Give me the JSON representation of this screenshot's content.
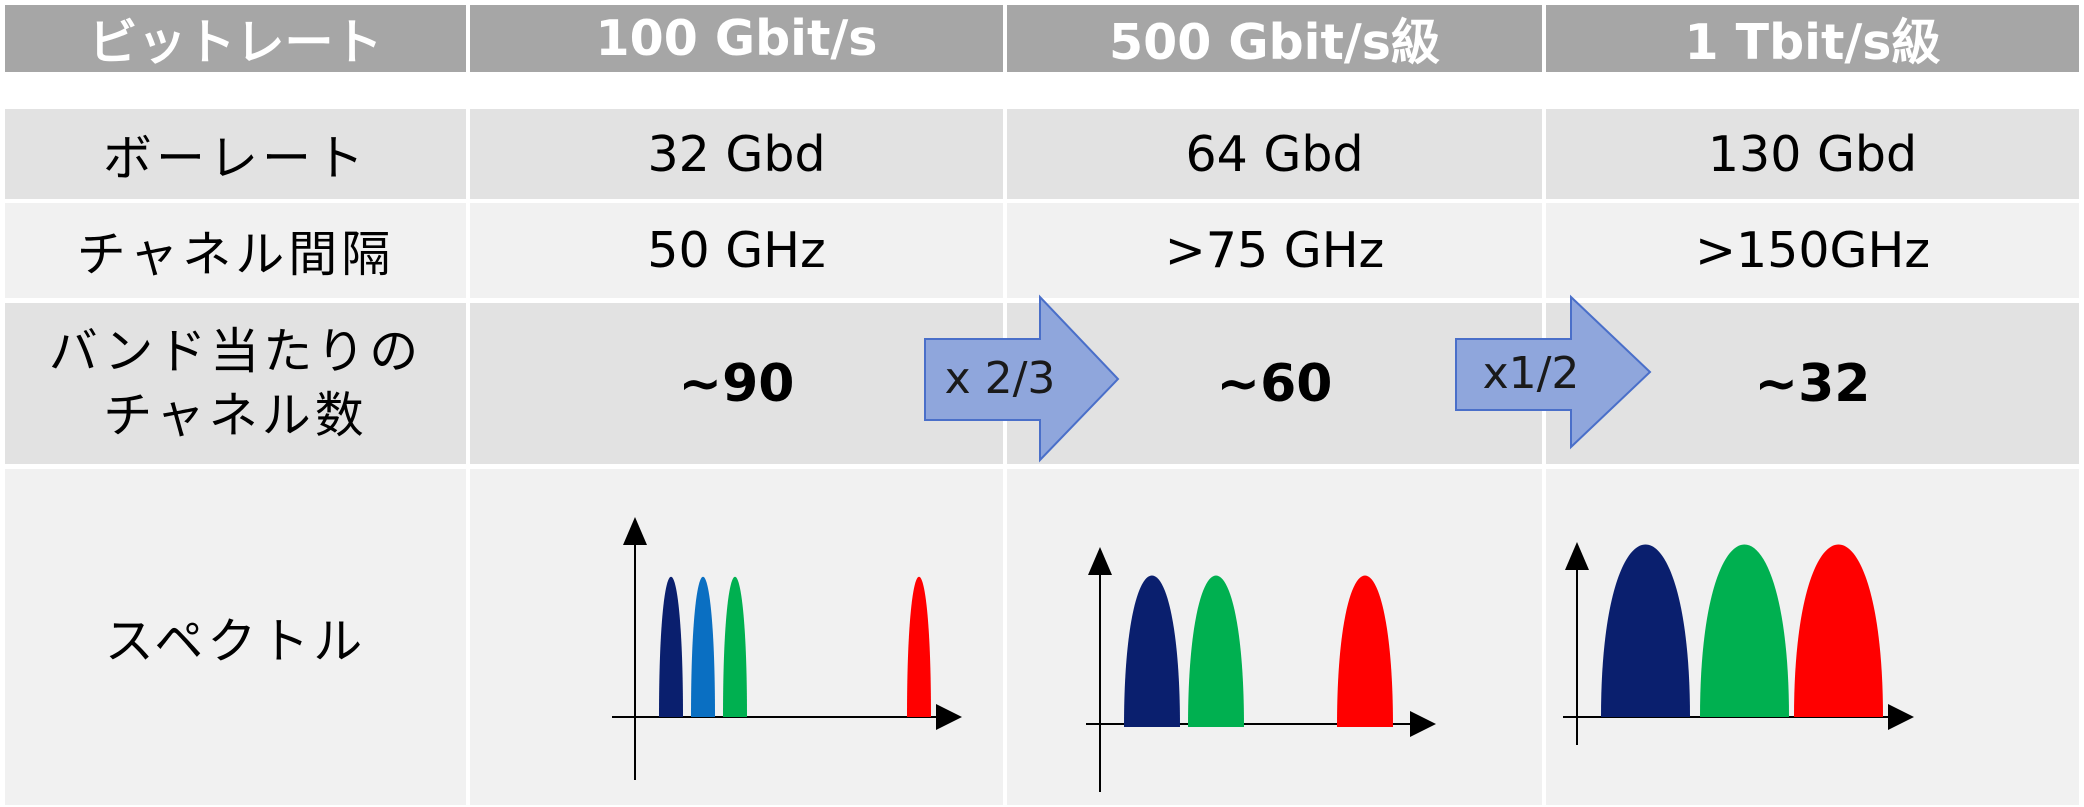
{
  "header": {
    "label": "ビットレート",
    "columns": [
      "100 Gbit/s",
      "500 Gbit/s級",
      "1 Tbit/s級"
    ]
  },
  "rows": {
    "baud": {
      "label": "ボーレート",
      "values": [
        "32 Gbd",
        "64 Gbd",
        "130 Gbd"
      ]
    },
    "spacing": {
      "label": "チャネル間隔",
      "values": [
        "50 GHz",
        ">75 GHz",
        ">150GHz"
      ]
    },
    "channels": {
      "label_line1": "バンド当たりの",
      "label_line2": "チャネル数",
      "values": [
        "~90",
        "~60",
        "~32"
      ]
    },
    "spectrum": {
      "label": "スペクトル"
    }
  },
  "arrows": [
    "x 2/3",
    "x1/2"
  ],
  "colors": {
    "header_bg": "#a6a6a6",
    "row_dark": "#e2e2e2",
    "row_light": "#f1f1f1",
    "arrow_fill": "#8fa6dc",
    "arrow_stroke": "#4a6fc9",
    "navy": "#0a1f6e",
    "blue": "#0a6fc2",
    "green": "#00b050",
    "red": "#ff0000"
  }
}
